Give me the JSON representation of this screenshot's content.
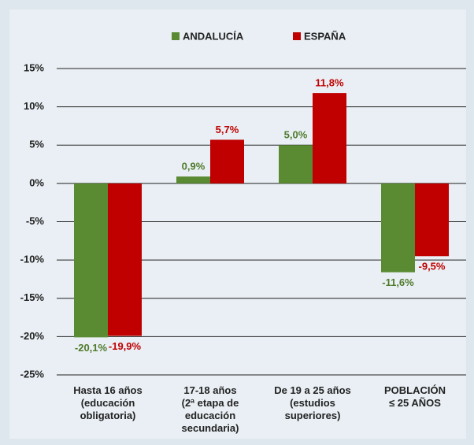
{
  "chart_data": {
    "type": "bar",
    "categories": [
      "Hasta 16 años\n(educación\nobligatoria)",
      "17-18 años\n(2ª etapa de\neducación\nsecundaria)",
      "De 19 a 25 años\n(estudios\nsuperiores)",
      "POBLACIÓN\n≤ 25 AÑOS"
    ],
    "series": [
      {
        "name": "ANDALUCÍA",
        "color": "#5a8a32",
        "label_color": "#4f7a2b",
        "values": [
          -20.1,
          0.9,
          5.0,
          -11.6
        ],
        "value_labels": [
          "-20,1%",
          "0,9%",
          "5,0%",
          "-11,6%"
        ]
      },
      {
        "name": "ESPAÑA",
        "color": "#c00000",
        "label_color": "#c00000",
        "values": [
          -19.9,
          5.7,
          11.8,
          -9.5
        ],
        "value_labels": [
          "-19,9%",
          "5,7%",
          "11,8%",
          "-9,5%"
        ]
      }
    ],
    "ylim": [
      -25,
      15
    ],
    "yticks": [
      {
        "value": -25,
        "label": "-25%"
      },
      {
        "value": -20,
        "label": "-20%"
      },
      {
        "value": -15,
        "label": "-15%"
      },
      {
        "value": -10,
        "label": "-10%"
      },
      {
        "value": -5,
        "label": "-5%"
      },
      {
        "value": 0,
        "label": "0%"
      },
      {
        "value": 5,
        "label": "5%"
      },
      {
        "value": 10,
        "label": "10%"
      },
      {
        "value": 15,
        "label": "15%"
      }
    ],
    "grid": true,
    "legend": "top"
  }
}
